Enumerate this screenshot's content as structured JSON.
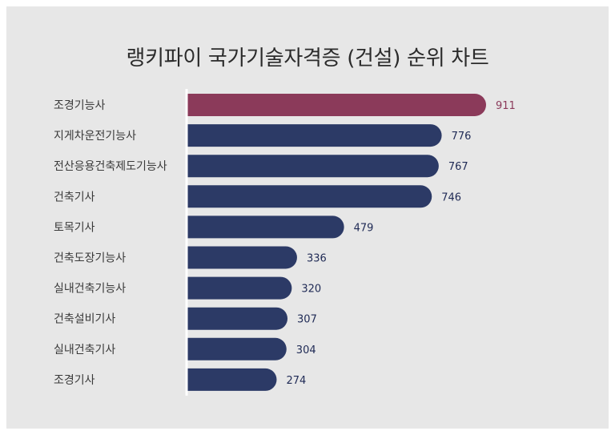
{
  "chart_data": {
    "type": "bar",
    "orientation": "horizontal",
    "title": "랭키파이 국가기술자격증 (건설) 순위 차트",
    "categories": [
      "조경기능사",
      "지게차운전기능사",
      "전산응용건축제도기능사",
      "건축기사",
      "토목기사",
      "건축도장기능사",
      "실내건축기능사",
      "건축설비기사",
      "실내건축기사",
      "조경기사"
    ],
    "values": [
      911,
      776,
      767,
      746,
      479,
      336,
      320,
      307,
      304,
      274
    ],
    "xlabel": "",
    "ylabel": "",
    "xlim": [
      0,
      911
    ],
    "grid": false,
    "legend": "none",
    "colors": {
      "highlight": "#8b3a5a",
      "bar": "#2c3a66",
      "highlight_label": "#8b3a5a",
      "label": "#1f2a55",
      "axis": "#ffffff",
      "panel": "#e7e7e7"
    }
  }
}
